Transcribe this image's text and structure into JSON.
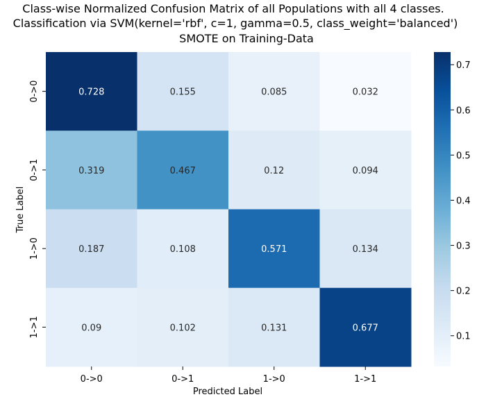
{
  "chart_data": {
    "type": "heatmap",
    "title_lines": [
      "Class-wise Normalized Confusion Matrix of all Populations with all 4 classes.",
      "Classification via SVM(kernel='rbf', c=1, gamma=0.5, class_weight='balanced')",
      "SMOTE on Training-Data"
    ],
    "xlabel": "Predicted Label",
    "ylabel": "True Label",
    "x_categories": [
      "0->0",
      "0->1",
      "1->0",
      "1->1"
    ],
    "y_categories": [
      "0->0",
      "0->1",
      "1->0",
      "1->1"
    ],
    "values": [
      [
        0.728,
        0.155,
        0.085,
        0.032
      ],
      [
        0.319,
        0.467,
        0.12,
        0.094
      ],
      [
        0.187,
        0.108,
        0.571,
        0.134
      ],
      [
        0.09,
        0.102,
        0.131,
        0.677
      ]
    ],
    "value_labels": [
      [
        "0.728",
        "0.155",
        "0.085",
        "0.032"
      ],
      [
        "0.319",
        "0.467",
        "0.12",
        "0.094"
      ],
      [
        "0.187",
        "0.108",
        "0.571",
        "0.134"
      ],
      [
        "0.09",
        "0.102",
        "0.131",
        "0.677"
      ]
    ],
    "colormap": "Blues",
    "colormap_stops": [
      "#f7fbff",
      "#deebf7",
      "#c6dbef",
      "#9ecae1",
      "#6baed6",
      "#4292c6",
      "#2171b5",
      "#08519c",
      "#08306b"
    ],
    "vmin": 0.032,
    "vmax": 0.728,
    "colorbar_ticks": [
      0.1,
      0.2,
      0.3,
      0.4,
      0.5,
      0.6,
      0.7
    ],
    "colorbar_tick_labels": [
      "0.1",
      "0.2",
      "0.3",
      "0.4",
      "0.5",
      "0.6",
      "0.7"
    ]
  }
}
